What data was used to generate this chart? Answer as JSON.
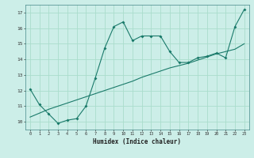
{
  "xlabel": "Humidex (Indice chaleur)",
  "ylabel": "",
  "background_color": "#cceee8",
  "grid_color": "#aaddcc",
  "line_color": "#1a7a6a",
  "xlim": [
    -0.5,
    23.5
  ],
  "ylim": [
    9.5,
    17.5
  ],
  "xticks": [
    0,
    1,
    2,
    3,
    4,
    5,
    6,
    7,
    8,
    9,
    10,
    11,
    12,
    13,
    14,
    15,
    16,
    17,
    18,
    19,
    20,
    21,
    22,
    23
  ],
  "yticks": [
    10,
    11,
    12,
    13,
    14,
    15,
    16,
    17
  ],
  "line1_x": [
    0,
    1,
    2,
    3,
    4,
    5,
    6,
    7,
    8,
    9,
    10,
    11,
    12,
    13,
    14,
    15,
    16,
    17,
    18,
    19,
    20,
    21,
    22,
    23
  ],
  "line1_y": [
    12.1,
    11.1,
    10.5,
    9.9,
    10.1,
    10.2,
    11.0,
    12.8,
    14.7,
    16.1,
    16.4,
    15.2,
    15.5,
    15.5,
    15.5,
    14.5,
    13.8,
    13.8,
    14.1,
    14.2,
    14.4,
    14.1,
    16.1,
    17.2
  ],
  "line2_x": [
    0,
    1,
    2,
    3,
    4,
    5,
    6,
    7,
    8,
    9,
    10,
    11,
    12,
    13,
    14,
    15,
    16,
    17,
    18,
    19,
    20,
    21,
    22,
    23
  ],
  "line2_y": [
    10.3,
    10.55,
    10.8,
    11.0,
    11.2,
    11.4,
    11.6,
    11.8,
    12.0,
    12.2,
    12.4,
    12.6,
    12.85,
    13.05,
    13.25,
    13.45,
    13.6,
    13.75,
    13.95,
    14.15,
    14.35,
    14.5,
    14.65,
    15.0
  ]
}
